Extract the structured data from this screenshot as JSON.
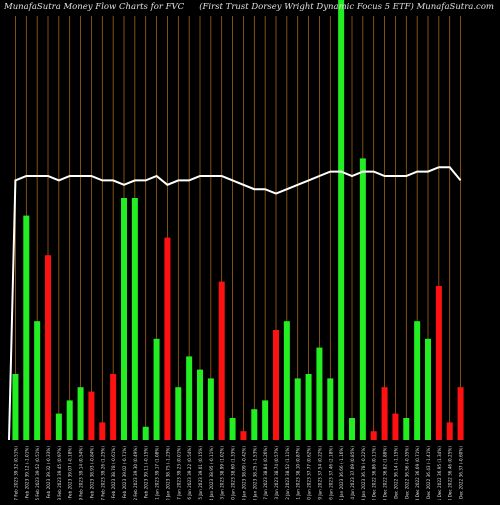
{
  "header": {
    "left_title": "MunafaSutra  Money Flow  Charts for FVC",
    "right_title": "(First Trust Dorsey Wright Dynamic Focus 5 ETF) MunafaSutra.com"
  },
  "colors": {
    "background": "#000000",
    "up": "#22ee22",
    "down": "#ff1111",
    "grid": "#b8701a",
    "line": "#ffffff",
    "text": "#e0e0e0"
  },
  "chart_data": {
    "type": "bar",
    "title": "",
    "xlabel": "",
    "ylabel": "",
    "ylim": [
      0,
      100
    ],
    "grid": "vertical",
    "categories": [
      "Fri 17 Feb 2023 39.32 (0.51%)",
      "Thu 16 Feb 2023 39.12 (-1.01%)",
      "Wed 15 Feb 2023 39.52 (0.51%)",
      "Tue 14 Feb 2023 39.32 (-0.33%)",
      "Mon 13 Feb 2023 39.45 (0.97%)",
      "Fri 10 Feb 2023 39.07 (-0.18%)",
      "Thu 09 Feb 2023 39.14 (0.54%)",
      "Wed 08 Feb 2023 38.93 (-0.84%)",
      "Tue 07 Feb 2023 39.26 (1.25%)",
      "Mon 06 Feb 2023 38.78 (-0.61%)",
      "Fri 03 Feb 2023 39.02 (-0.71%)",
      "Thu 02 Feb 2023 39.30 (0.49%)",
      "Wed 01 Feb 2023 39.11 (-0.15%)",
      "Tue 31 Jan 2023 39.17 (1.08%)",
      "Mon 30 Jan 2023 38.75 (-1.23%)",
      "Fri 27 Jan 2023 39.23 (0.01%)",
      "Thu 26 Jan 2023 39.22 (0.54%)",
      "Wed 25 Jan 2023 39.01 (0.15%)",
      "Tue 24 Jan 2023 38.95 (-0.11%)",
      "Mon 23 Jan 2023 38.99 (1.02%)",
      "Fri 20 Jan 2023 38.60 (1.33%)",
      "Thu 19 Jan 2023 38.09 (-0.42%)",
      "Wed 18 Jan 2023 38.25 (-1.53%)",
      "Tue 17 Jan 2023 38.84 (0.26%)",
      "Fri 13 Jan 2023 38.74 (0.57%)",
      "Thu 12 Jan 2023 38.52 (1.11%)",
      "Wed 11 Jan 2023 38.10 (0.87%)",
      "Tue 10 Jan 2023 37.77 (0.62%)",
      "Mon 09 Jan 2023 37.54 (0.22%)",
      "Fri 06 Jan 2023 37.46 (2.18%)",
      "Thu 05 Jan 2023 36.66 (-1.16%)",
      "Wed 04 Jan 2023 37.09 (0.85%)",
      "Tue 03 Jan 2023 36.78 (-0.22%)",
      "Fri 30 Dec 2022 36.86 (0.11%)",
      "Thu 29 Dec 2022 36.82 (1.88%)",
      "Wed 28 Dec 2022 36.14 (-1.15%)",
      "Tue 27 Dec 2022 36.56 (-0.35%)",
      "Fri 23 Dec 2022 36.69 (0.71%)",
      "Thu 22 Dec 2022 36.43 (-1.41%)",
      "Wed 21 Dec 2022 36.95 (1.34%)",
      "Tue 20 Dec 2022 36.46 (0.25%)",
      "Mon 19 Dec 2022 36.37 (-0.60%)"
    ],
    "series": [
      {
        "values": [
          15,
          51,
          27,
          42,
          6,
          9,
          12,
          11,
          4,
          15,
          55,
          55,
          3,
          23,
          46,
          12,
          19,
          16,
          14,
          36,
          5,
          2,
          7,
          9,
          25,
          27,
          14,
          15,
          21,
          14,
          100,
          5,
          64,
          2,
          12,
          6,
          5,
          27,
          23,
          35,
          4,
          12
        ],
        "directions": [
          "up",
          "up",
          "up",
          "down",
          "up",
          "up",
          "up",
          "down",
          "down",
          "down",
          "up",
          "up",
          "up",
          "up",
          "down",
          "up",
          "up",
          "up",
          "up",
          "down",
          "up",
          "down",
          "up",
          "up",
          "down",
          "up",
          "up",
          "up",
          "up",
          "up",
          "up",
          "up",
          "up",
          "down",
          "down",
          "down",
          "up",
          "up",
          "up",
          "down",
          "down",
          "down"
        ]
      },
      {
        "values": [
          59,
          60,
          60,
          60,
          59,
          60,
          60,
          60,
          59,
          59,
          58,
          59,
          59,
          60,
          58,
          59,
          59,
          60,
          60,
          60,
          59,
          58,
          57,
          57,
          56,
          57,
          58,
          59,
          60,
          61,
          61,
          60,
          61,
          61,
          60,
          60,
          60,
          61,
          61,
          62,
          62,
          59
        ]
      }
    ],
    "annotation": ""
  }
}
